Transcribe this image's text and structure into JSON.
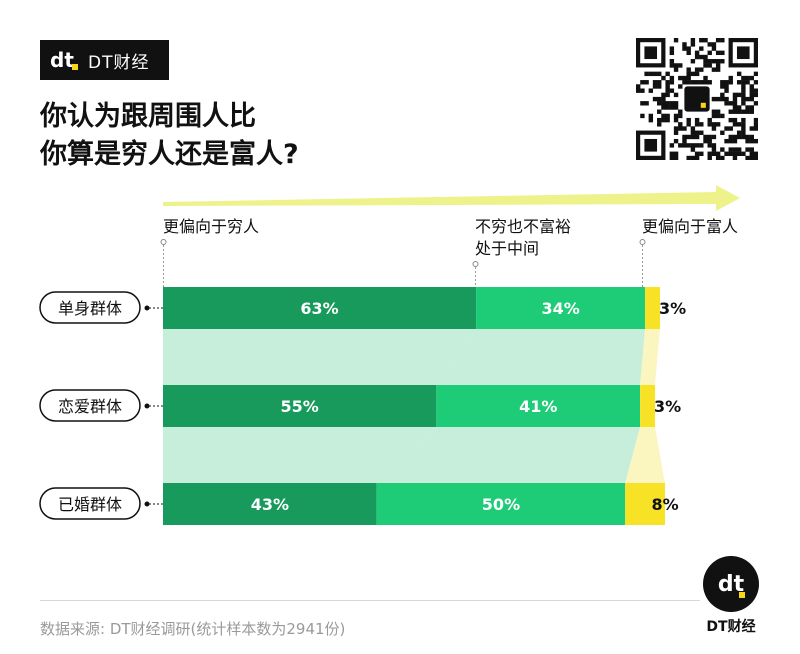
{
  "brand": {
    "name": "DT财经"
  },
  "title_lines": [
    "你认为跟周围人比",
    "你算是穷人还是富人?"
  ],
  "source": "数据来源: DT财经调研(统计样本数为2941份)",
  "colors": {
    "poor": "#179a5b",
    "middle": "#1ecc78",
    "rich": "#f7e226",
    "connector": "#c6eedb",
    "axis_arrow": "#eef28a"
  },
  "chart_data": {
    "type": "bar",
    "stacked": true,
    "orientation": "horizontal",
    "percent": true,
    "axis_labels": {
      "left": "更偏向于穷人",
      "middle_lines": [
        "不穷也不富裕",
        "处于中间"
      ],
      "right": "更偏向于富人"
    },
    "categories": [
      "单身群体",
      "恋爱群体",
      "已婚群体"
    ],
    "series": [
      {
        "name": "更偏向于穷人",
        "values": [
          63,
          55,
          43
        ]
      },
      {
        "name": "不穷也不富裕 处于中间",
        "values": [
          34,
          41,
          50
        ]
      },
      {
        "name": "更偏向于富人",
        "values": [
          3,
          3,
          8
        ]
      }
    ]
  }
}
